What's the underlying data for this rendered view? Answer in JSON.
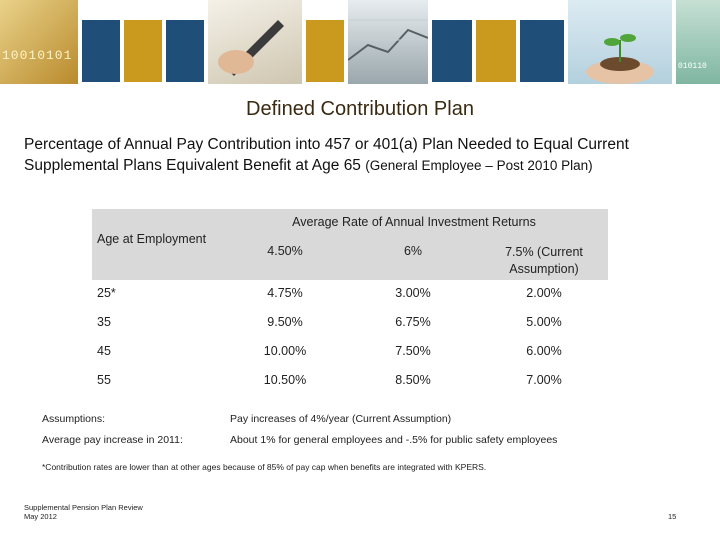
{
  "slide": {
    "title": "Defined Contribution Plan",
    "intro_main": "Percentage of Annual Pay Contribution into 457 or 401(a) Plan Needed to Equal Current Supplemental Plans Equivalent Benefit at Age 65",
    "intro_small": "(General Employee – Post 2010 Plan)"
  },
  "table": {
    "row_header": "Age at Employment",
    "group_header": "Average Rate of Annual Investment Returns",
    "columns": [
      "4.50%",
      "6%",
      "7.5% (Current Assumption)"
    ],
    "rows": [
      {
        "age": "25*",
        "values": [
          "4.75%",
          "3.00%",
          "2.00%"
        ]
      },
      {
        "age": "35",
        "values": [
          "9.50%",
          "6.75%",
          "5.00%"
        ]
      },
      {
        "age": "45",
        "values": [
          "10.00%",
          "7.50%",
          "6.00%"
        ]
      },
      {
        "age": "55",
        "values": [
          "10.50%",
          "8.50%",
          "7.00%"
        ]
      }
    ]
  },
  "assumptions": [
    {
      "label": "Assumptions:",
      "text": "Pay increases of 4%/year (Current Assumption)"
    },
    {
      "label": "Average pay increase in 2011:",
      "text": "About 1% for general employees and -.5% for public safety employees"
    }
  ],
  "footnote": "*Contribution rates are lower than at other ages because of 85% of pay cap when benefits are integrated with KPERS.",
  "footer": {
    "line1": "Supplemental Pension Plan Review",
    "line2": "May 2012",
    "page_number": "15"
  },
  "banner": {
    "tile_colors": [
      "#1f4e79",
      "#c99a1e",
      "#1f4e79",
      "#c99a1e",
      "#1f4e79",
      "#1f4e79",
      "#c99a1e"
    ],
    "photo_text_left": "10010101",
    "photo_text_right": "010110"
  }
}
